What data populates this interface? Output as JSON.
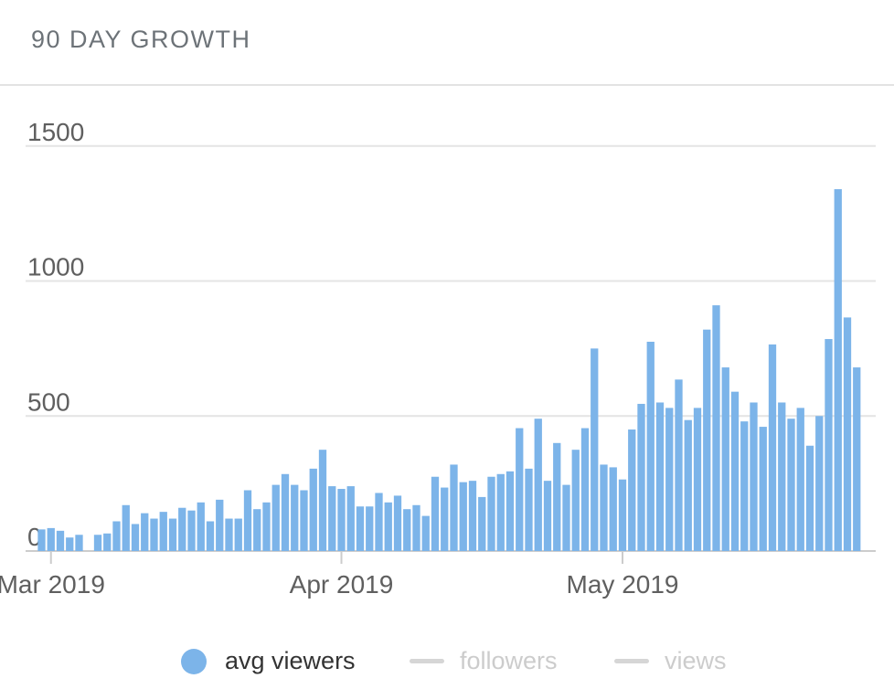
{
  "header": {
    "title": "90 DAY GROWTH"
  },
  "chart_data": {
    "type": "bar",
    "title": "90 DAY GROWTH",
    "xlabel": "",
    "ylabel": "",
    "ylim": [
      0,
      1600
    ],
    "yticks": [
      0,
      500,
      1000,
      1500
    ],
    "ytick_labels": [
      "0",
      "500",
      "1000",
      "1500"
    ],
    "grid": true,
    "x_start": "2019-02-28",
    "xticks": [
      {
        "date": "2019-03-01",
        "label": "Mar 2019"
      },
      {
        "date": "2019-04-01",
        "label": "Apr 2019"
      },
      {
        "date": "2019-05-01",
        "label": "May 2019"
      }
    ],
    "series": [
      {
        "name": "avg viewers",
        "color": "#7cb4e9",
        "values": [
          80,
          85,
          75,
          50,
          60,
          0,
          60,
          65,
          110,
          170,
          100,
          140,
          120,
          145,
          120,
          160,
          150,
          180,
          110,
          190,
          120,
          120,
          225,
          155,
          180,
          245,
          285,
          245,
          225,
          305,
          375,
          240,
          230,
          240,
          165,
          165,
          215,
          180,
          205,
          155,
          170,
          130,
          275,
          235,
          320,
          255,
          260,
          200,
          275,
          285,
          295,
          455,
          305,
          490,
          260,
          400,
          245,
          375,
          455,
          750,
          320,
          310,
          265,
          450,
          545,
          775,
          550,
          530,
          635,
          485,
          530,
          820,
          910,
          680,
          590,
          480,
          550,
          460,
          765,
          550,
          490,
          530,
          390,
          500,
          785,
          1340,
          865,
          680
        ]
      }
    ],
    "legend": {
      "position": "bottom-center",
      "items": [
        {
          "label": "avg viewers",
          "color": "#7cb4e9",
          "active": true
        },
        {
          "label": "followers",
          "color": "#d6d6d6",
          "active": false
        },
        {
          "label": "views",
          "color": "#d6d6d6",
          "active": false
        }
      ]
    }
  }
}
